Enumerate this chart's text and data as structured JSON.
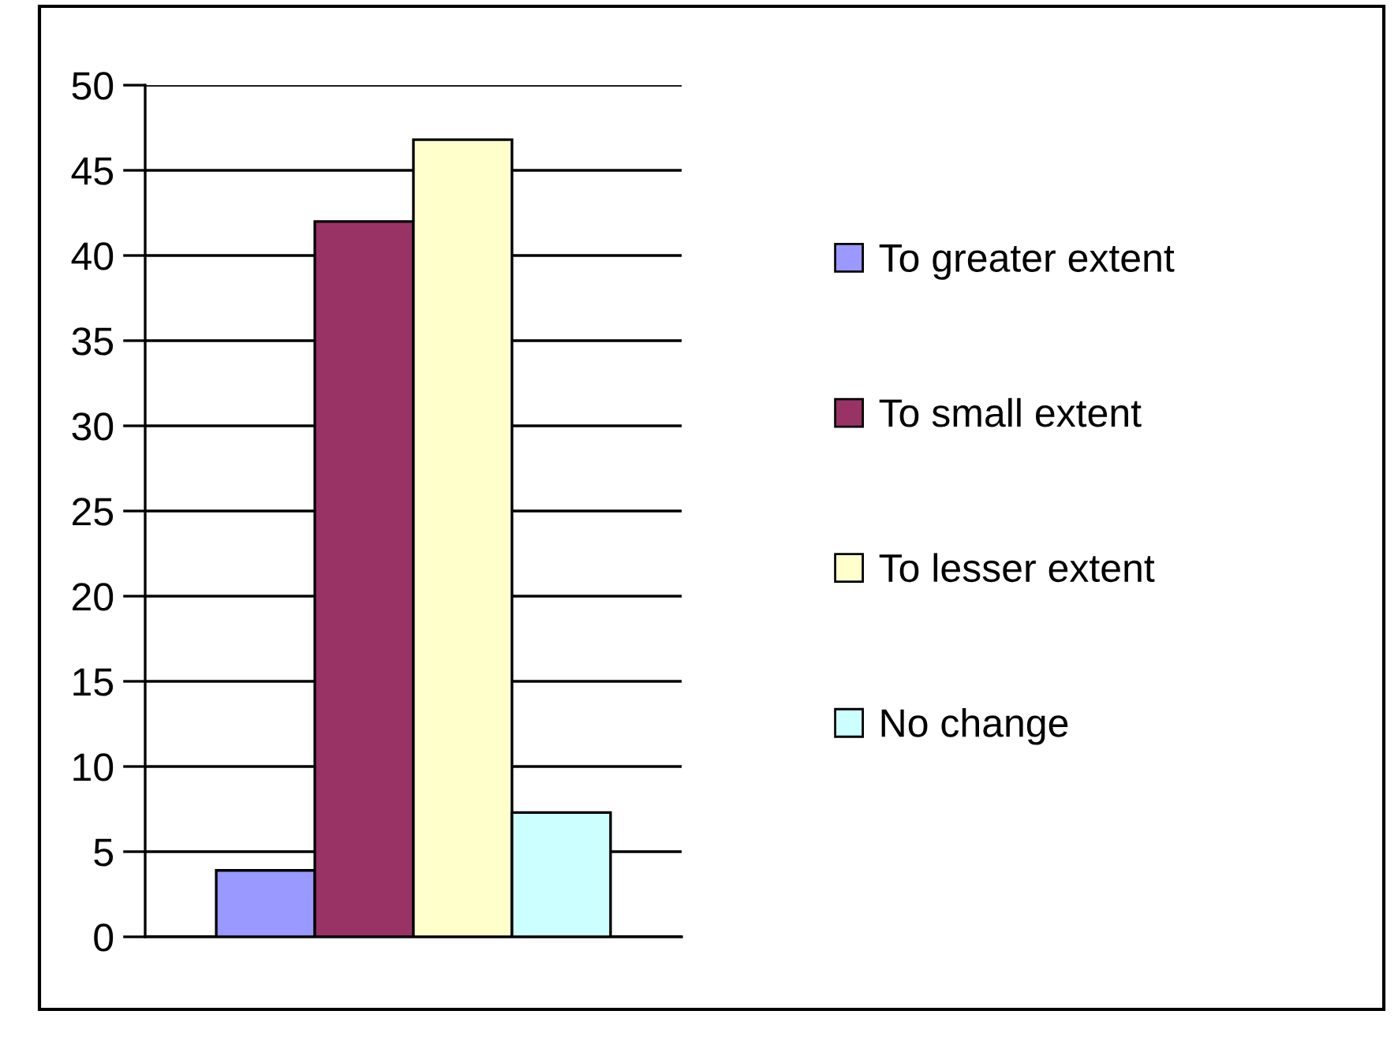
{
  "chart_data": {
    "type": "bar",
    "categories": [
      null
    ],
    "series": [
      {
        "name": "To greater extent",
        "color": "#9999ff",
        "values": [
          3.9
        ]
      },
      {
        "name": "To small extent",
        "color": "#993366",
        "values": [
          42
        ]
      },
      {
        "name": "To lesser extent",
        "color": "#ffffcc",
        "values": [
          46.8
        ]
      },
      {
        "name": "No change",
        "color": "#ccffff",
        "values": [
          7.3
        ]
      }
    ],
    "ylim": [
      0,
      50
    ],
    "yticks": [
      0,
      5,
      10,
      15,
      20,
      25,
      30,
      35,
      40,
      45,
      50
    ],
    "grid": "y",
    "legend": "right"
  }
}
